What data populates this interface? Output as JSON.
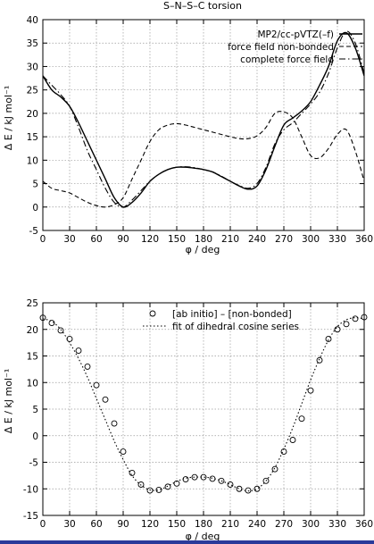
{
  "frame": {
    "bottom_bar_color": "#2a3a9a"
  },
  "chart_data": [
    {
      "type": "line",
      "title": "S–N–S–C torsion",
      "xlabel": "φ / deg",
      "ylabel": "Δ E / kJ mol⁻¹",
      "xlim": [
        0,
        360
      ],
      "ylim": [
        -5,
        40
      ],
      "xticks": [
        0,
        30,
        60,
        90,
        120,
        150,
        180,
        210,
        240,
        270,
        300,
        330,
        360
      ],
      "yticks": [
        -5,
        0,
        5,
        10,
        15,
        20,
        25,
        30,
        35,
        40
      ],
      "grid": true,
      "legend": "top-right",
      "series": [
        {
          "name": "MP2/cc-pVTZ(–f)",
          "style": "solid",
          "x": [
            0,
            10,
            20,
            30,
            40,
            50,
            60,
            70,
            80,
            90,
            100,
            110,
            120,
            130,
            140,
            150,
            160,
            170,
            180,
            190,
            200,
            210,
            220,
            230,
            240,
            250,
            260,
            270,
            280,
            290,
            300,
            310,
            320,
            330,
            340,
            350,
            360
          ],
          "y": [
            28,
            25,
            23.5,
            21.5,
            18,
            14,
            10,
            6,
            2,
            0,
            1,
            3,
            5.5,
            7,
            8,
            8.5,
            8.5,
            8.3,
            8,
            7.5,
            6.5,
            5.5,
            4.5,
            3.8,
            4.5,
            8,
            13,
            17.5,
            19,
            20.5,
            22.5,
            26,
            30,
            35.5,
            37.2,
            34,
            28
          ]
        },
        {
          "name": "force field non-bonded",
          "style": "dashed",
          "x": [
            0,
            10,
            20,
            30,
            40,
            50,
            60,
            70,
            80,
            90,
            100,
            110,
            120,
            130,
            140,
            150,
            160,
            170,
            180,
            190,
            200,
            210,
            220,
            230,
            240,
            250,
            260,
            270,
            280,
            290,
            300,
            310,
            320,
            330,
            340,
            350,
            360
          ],
          "y": [
            5.5,
            4,
            3.5,
            3,
            2,
            1,
            0.3,
            0,
            0.5,
            2,
            6,
            10,
            14,
            16.5,
            17.5,
            17.8,
            17.5,
            17,
            16.5,
            16,
            15.5,
            15,
            14.6,
            14.6,
            15.2,
            17,
            20,
            20.3,
            19,
            15,
            11,
            10.5,
            12.5,
            15.5,
            16.5,
            12,
            5.5
          ]
        },
        {
          "name": "complete force field",
          "style": "dashdot",
          "x": [
            0,
            10,
            20,
            30,
            40,
            50,
            60,
            70,
            80,
            90,
            100,
            110,
            120,
            130,
            140,
            150,
            160,
            170,
            180,
            190,
            200,
            210,
            220,
            230,
            240,
            250,
            260,
            270,
            280,
            290,
            300,
            310,
            320,
            330,
            340,
            350,
            360
          ],
          "y": [
            28,
            26,
            24,
            21.5,
            17,
            12,
            8,
            4,
            1,
            0,
            1.5,
            3.5,
            5.5,
            7,
            8,
            8.5,
            8.6,
            8.4,
            8,
            7.5,
            6.6,
            5.5,
            4.6,
            4,
            5,
            8.5,
            13.5,
            16.5,
            18,
            20,
            22,
            24.5,
            28.5,
            34,
            37.5,
            35,
            28.5
          ]
        }
      ]
    },
    {
      "type": "scatter",
      "title": "",
      "xlabel": "φ / deg",
      "ylabel": "Δ E / kJ mol⁻¹",
      "xlim": [
        0,
        360
      ],
      "ylim": [
        -15,
        25
      ],
      "xticks": [
        0,
        30,
        60,
        90,
        120,
        150,
        180,
        210,
        240,
        270,
        300,
        330,
        360
      ],
      "yticks": [
        -15,
        -10,
        -5,
        0,
        5,
        10,
        15,
        20,
        25
      ],
      "grid": true,
      "legend": "top-center",
      "series": [
        {
          "name": "[ab initio] – [non-bonded]",
          "style": "open-circle",
          "x": [
            0,
            10,
            20,
            30,
            40,
            50,
            60,
            70,
            80,
            90,
            100,
            110,
            120,
            130,
            140,
            150,
            160,
            170,
            180,
            190,
            200,
            210,
            220,
            230,
            240,
            250,
            260,
            270,
            280,
            290,
            300,
            310,
            320,
            330,
            340,
            350,
            360
          ],
          "y": [
            22.2,
            21.2,
            19.8,
            18.2,
            16,
            13,
            9.5,
            6.8,
            2.3,
            -3,
            -7,
            -9.2,
            -10.3,
            -10.2,
            -9.6,
            -9,
            -8.2,
            -7.8,
            -7.8,
            -8.1,
            -8.5,
            -9.2,
            -10,
            -10.3,
            -10,
            -8.5,
            -6.3,
            -3,
            -0.8,
            3.2,
            8.5,
            14.2,
            18.2,
            20,
            21,
            22,
            22.3
          ]
        },
        {
          "name": "fit of dihedral cosine series",
          "style": "dotted",
          "x": [
            0,
            10,
            20,
            30,
            40,
            50,
            60,
            70,
            80,
            90,
            100,
            110,
            120,
            130,
            140,
            150,
            160,
            170,
            180,
            190,
            200,
            210,
            220,
            230,
            240,
            250,
            260,
            270,
            280,
            290,
            300,
            310,
            320,
            330,
            340,
            350,
            360
          ],
          "y": [
            22,
            21.5,
            20,
            17.5,
            14.5,
            11,
            7,
            3,
            -1,
            -4.5,
            -7.5,
            -9.3,
            -10.2,
            -10.2,
            -9.5,
            -8.6,
            -8,
            -7.8,
            -7.8,
            -8,
            -8.5,
            -9.2,
            -10,
            -10.4,
            -10,
            -8.5,
            -6,
            -2.5,
            1.5,
            6,
            10.5,
            14.5,
            18,
            20.5,
            21.8,
            22.2,
            22
          ]
        }
      ]
    }
  ]
}
